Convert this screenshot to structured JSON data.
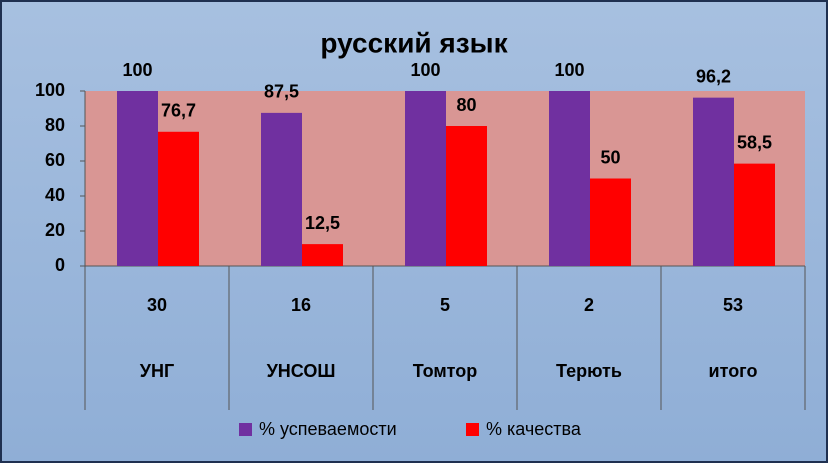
{
  "chart_data": {
    "type": "bar",
    "title": "русский язык",
    "categories": [
      "УНГ",
      "УНСОШ",
      "Томтор",
      "Терють",
      "итого"
    ],
    "category_sublabels": [
      "30",
      "16",
      "5",
      "2",
      "53"
    ],
    "series": [
      {
        "name": "% успеваемости",
        "color": "#7030a0",
        "values": [
          100,
          87.5,
          100,
          100,
          96.2
        ],
        "value_labels": [
          "100",
          "87,5",
          "100",
          "100",
          "96,2"
        ]
      },
      {
        "name": "% качества",
        "color": "#ff0000",
        "values": [
          76.7,
          12.5,
          80,
          50,
          58.5
        ],
        "value_labels": [
          "76,7",
          "12,5",
          "80",
          "50",
          "58,5"
        ]
      }
    ],
    "ylim": [
      0,
      100
    ],
    "yticks": [
      0,
      20,
      40,
      60,
      80,
      100
    ],
    "grid": false,
    "legend": "bottom",
    "plot_color": "#d99694"
  }
}
